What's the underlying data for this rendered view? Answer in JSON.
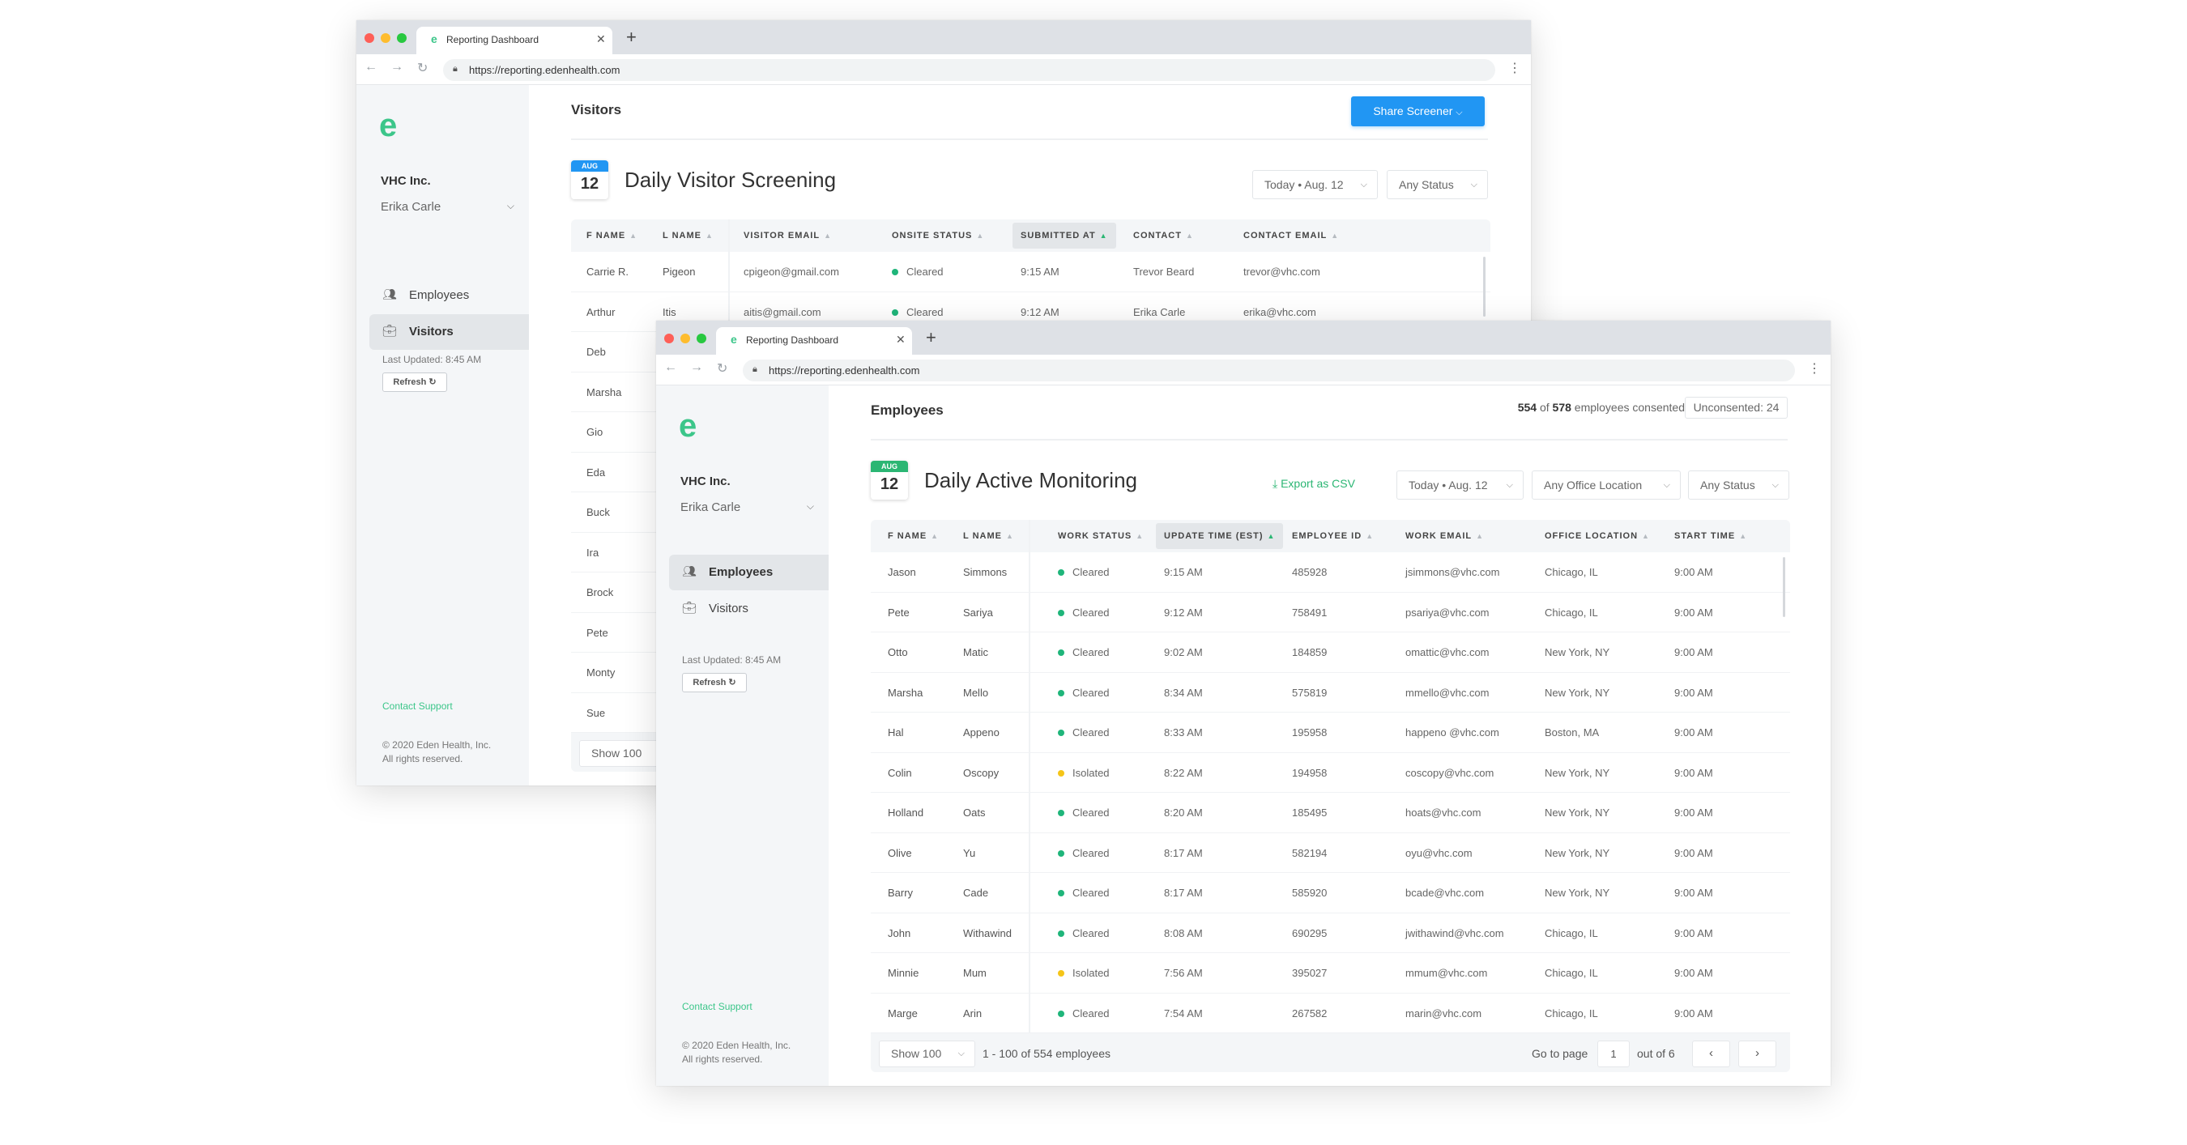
{
  "browser": {
    "tab_title": "Reporting Dashboard",
    "favicon": "e",
    "url": "https://reporting.edenhealth.com"
  },
  "colors": {
    "brand_green": "#3cc68a",
    "accent_blue": "#2196f3",
    "cleared": "#1fb57a",
    "isolated": "#f5c518",
    "mac_close": "#fe5f57",
    "mac_min": "#febc2e",
    "mac_max": "#28c840"
  },
  "sidebar": {
    "logo": "e",
    "company": "VHC Inc.",
    "user": "Erika Carle",
    "nav": [
      {
        "label": "Employees",
        "icon": "users-icon"
      },
      {
        "label": "Visitors",
        "icon": "briefcase-icon"
      }
    ],
    "last_updated": "Last Updated: 8:45 AM",
    "refresh": "Refresh",
    "contact": "Contact Support",
    "copyright_1": "© 2020 Eden Health, Inc.",
    "copyright_2": "All rights reserved."
  },
  "visitors": {
    "page_title": "Visitors",
    "share_button": "Share Screener",
    "calendar": {
      "month": "AUG",
      "day": "12"
    },
    "title": "Daily Visitor Screening",
    "filters": [
      "Today • Aug. 12",
      "Any Status"
    ],
    "columns": [
      "F NAME",
      "L NAME",
      "VISITOR EMAIL",
      "ONSITE STATUS",
      "SUBMITTED AT",
      "CONTACT",
      "CONTACT EMAIL"
    ],
    "sorted_column": 4,
    "rows": [
      [
        "Carrie R.",
        "Pigeon",
        "cpigeon@gmail.com",
        "Cleared",
        "9:15 AM",
        "Trevor Beard",
        "trevor@vhc.com"
      ],
      [
        "Arthur",
        "Itis",
        "aitis@gmail.com",
        "Cleared",
        "9:12 AM",
        "Erika Carle",
        "erika@vhc.com"
      ],
      [
        "Deb"
      ],
      [
        "Marsha"
      ],
      [
        "Gio"
      ],
      [
        "Eda"
      ],
      [
        "Buck"
      ],
      [
        "Ira"
      ],
      [
        "Brock"
      ],
      [
        "Pete"
      ],
      [
        "Monty"
      ],
      [
        "Sue"
      ]
    ],
    "show": "Show 100"
  },
  "employees": {
    "page_title": "Employees",
    "consented_count": "554",
    "consented_of": "of",
    "consented_total": "578",
    "consented_label": "employees consented",
    "unconsented": "Unconsented: 24",
    "calendar": {
      "month": "AUG",
      "day": "12"
    },
    "title": "Daily Active Monitoring",
    "export": "Export as CSV",
    "filters": [
      "Today • Aug. 12",
      "Any Office Location",
      "Any Status"
    ],
    "columns": [
      "F NAME",
      "L NAME",
      "WORK STATUS",
      "UPDATE TIME (EST)",
      "EMPLOYEE ID",
      "WORK EMAIL",
      "OFFICE LOCATION",
      "START TIME"
    ],
    "sorted_column": 3,
    "rows": [
      [
        "Jason",
        "Simmons",
        "Cleared",
        "9:15 AM",
        "485928",
        "jsimmons@vhc.com",
        "Chicago, IL",
        "9:00 AM"
      ],
      [
        "Pete",
        "Sariya",
        "Cleared",
        "9:12 AM",
        "758491",
        "psariya@vhc.com",
        "Chicago, IL",
        "9:00 AM"
      ],
      [
        "Otto",
        "Matic",
        "Cleared",
        "9:02 AM",
        "184859",
        "omattic@vhc.com",
        "New York, NY",
        "9:00 AM"
      ],
      [
        "Marsha",
        "Mello",
        "Cleared",
        "8:34 AM",
        "575819",
        "mmello@vhc.com",
        "New York, NY",
        "9:00 AM"
      ],
      [
        "Hal",
        "Appeno",
        "Cleared",
        "8:33 AM",
        "195958",
        "happeno @vhc.com",
        "Boston, MA",
        "9:00 AM"
      ],
      [
        "Colin",
        "Oscopy",
        "Isolated",
        "8:22 AM",
        "194958",
        "coscopy@vhc.com",
        "New York, NY",
        "9:00 AM"
      ],
      [
        "Holland",
        "Oats",
        "Cleared",
        "8:20 AM",
        "185495",
        "hoats@vhc.com",
        "New York, NY",
        "9:00 AM"
      ],
      [
        "Olive",
        "Yu",
        "Cleared",
        "8:17 AM",
        "582194",
        "oyu@vhc.com",
        "New York, NY",
        "9:00 AM"
      ],
      [
        "Barry",
        "Cade",
        "Cleared",
        "8:17 AM",
        "585920",
        "bcade@vhc.com",
        "New York, NY",
        "9:00 AM"
      ],
      [
        "John",
        "Withawind",
        "Cleared",
        "8:08 AM",
        "690295",
        "jwithawind@vhc.com",
        "Chicago, IL",
        "9:00 AM"
      ],
      [
        "Minnie",
        "Mum",
        "Isolated",
        "7:56 AM",
        "395027",
        "mmum@vhc.com",
        "Chicago, IL",
        "9:00 AM"
      ],
      [
        "Marge",
        "Arin",
        "Cleared",
        "7:54 AM",
        "267582",
        "marin@vhc.com",
        "Chicago, IL",
        "9:00 AM"
      ]
    ],
    "show": "Show 100",
    "range": "1 - 100 of 554 employees",
    "goto_label": "Go to page",
    "page": "1",
    "out_of": "out of 6"
  }
}
